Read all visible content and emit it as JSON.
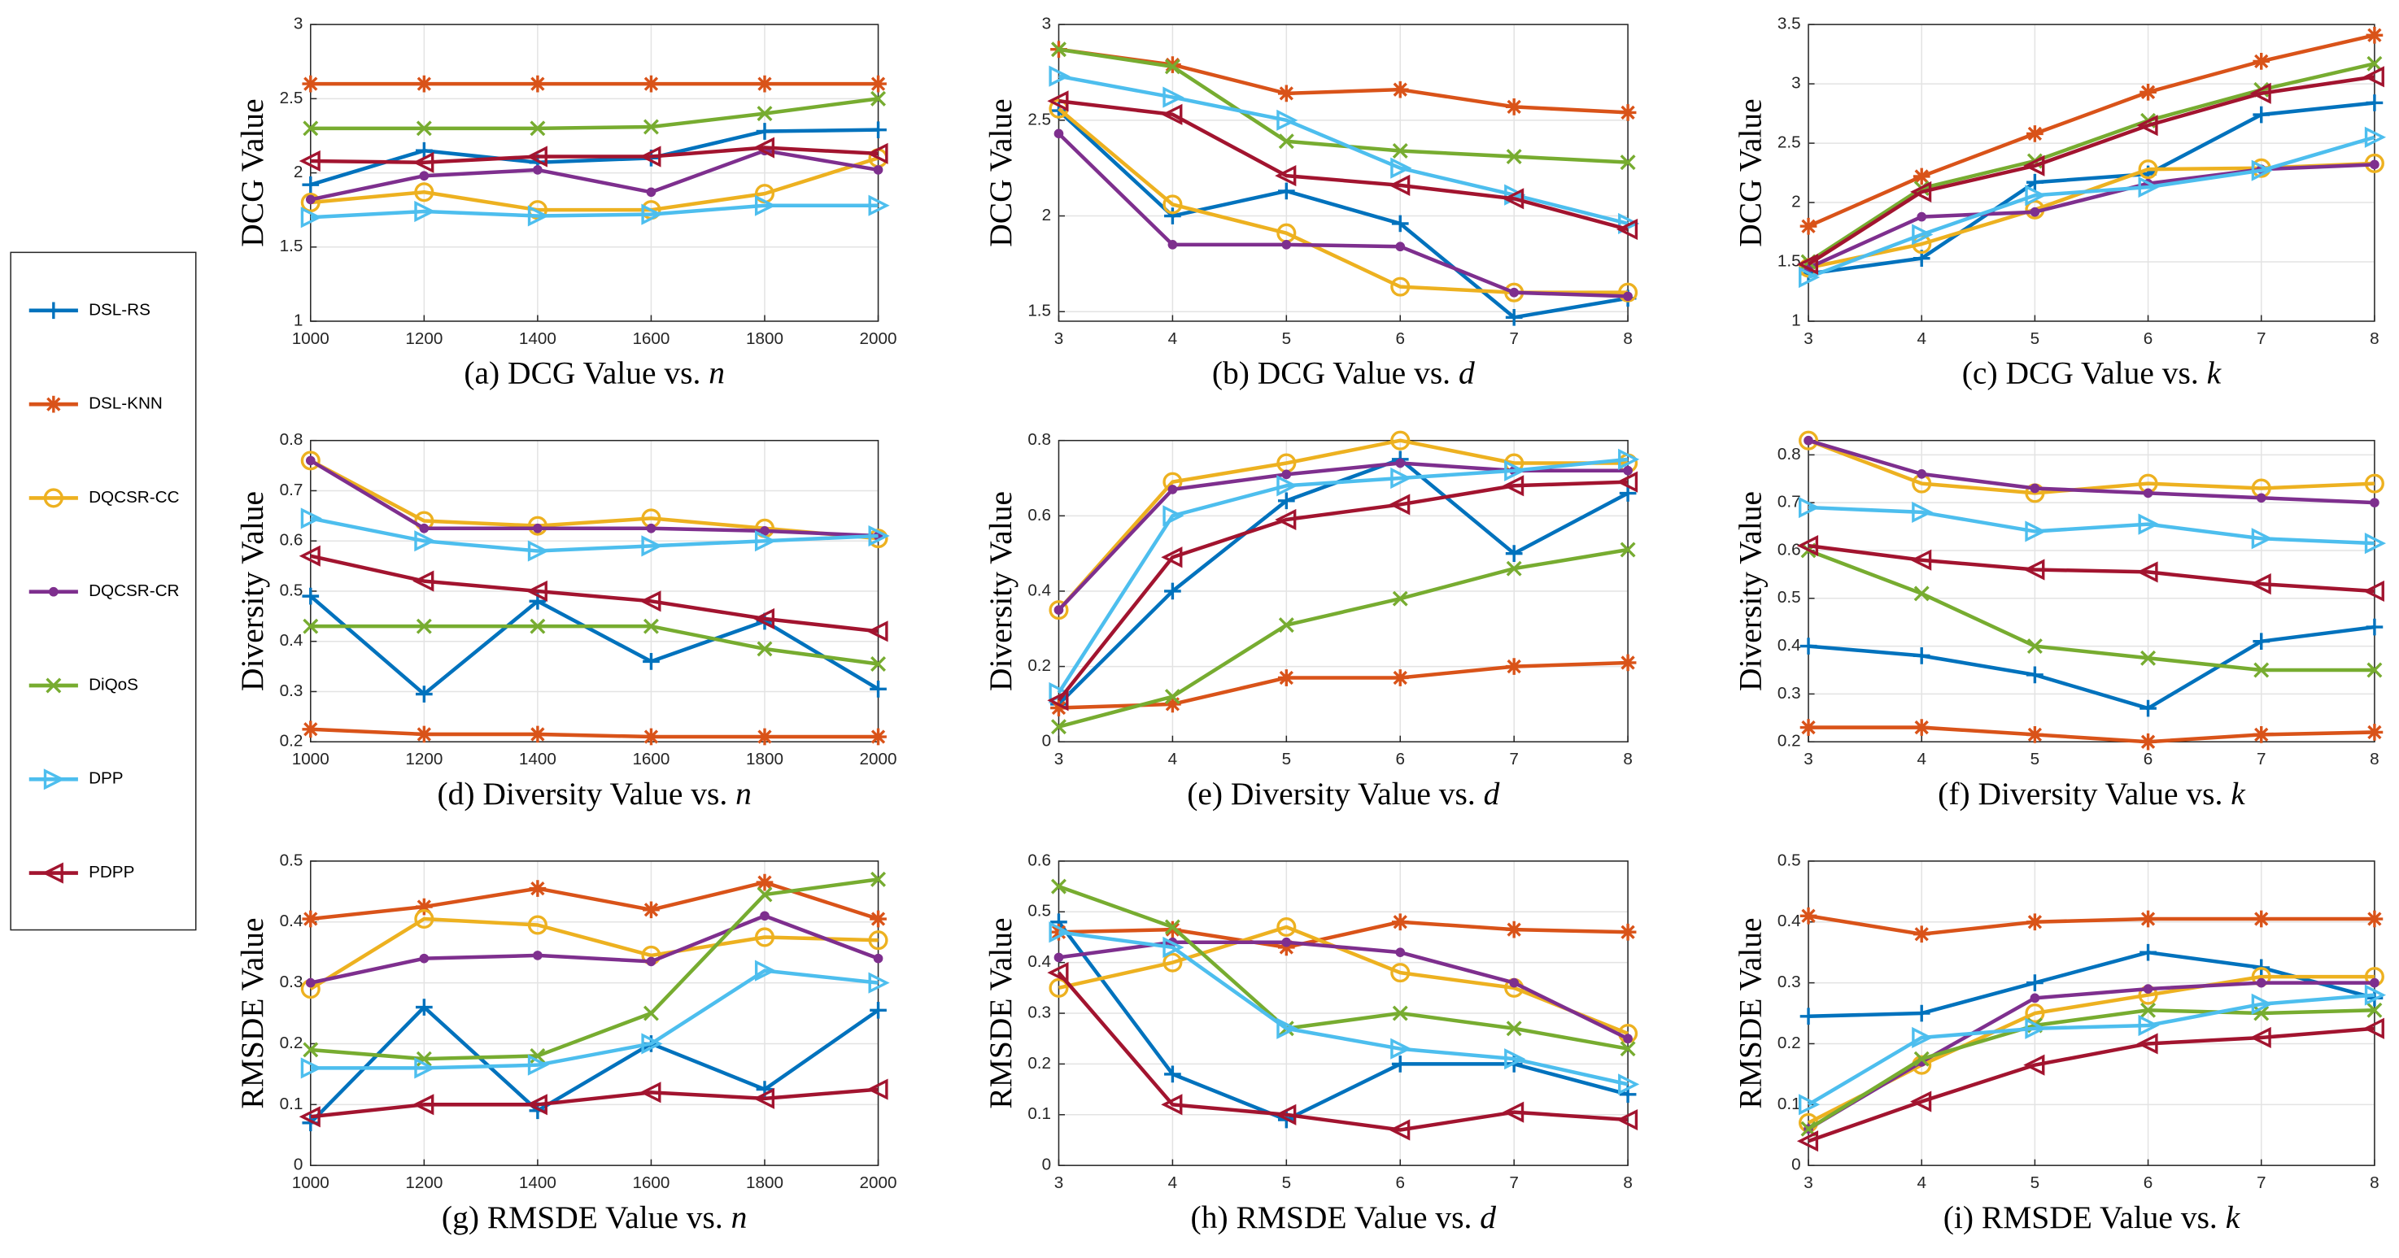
{
  "legend": {
    "entries": [
      {
        "name": "DSL-RS",
        "color": "#0072BD",
        "marker": "plus"
      },
      {
        "name": "DSL-KNN",
        "color": "#D95319",
        "marker": "asterisk"
      },
      {
        "name": "DQCSR-CC",
        "color": "#EDB120",
        "marker": "circle"
      },
      {
        "name": "DQCSR-CR",
        "color": "#7E2F8E",
        "marker": "point"
      },
      {
        "name": "DiQoS",
        "color": "#77AC30",
        "marker": "x"
      },
      {
        "name": "DPP",
        "color": "#4DBEEE",
        "marker": "triangle-right"
      },
      {
        "name": "PDPP",
        "color": "#A2142F",
        "marker": "triangle-left"
      }
    ],
    "position": "left"
  },
  "chart_data": [
    {
      "type": "line",
      "ylabel": "DCG Value",
      "caption": "(a) DCG Value vs.",
      "caption_var": "n",
      "x": [
        1000,
        1200,
        1400,
        1600,
        1800,
        2000
      ],
      "xlim": [
        1000,
        2000
      ],
      "xticks": [
        1000,
        1200,
        1400,
        1600,
        1800,
        2000
      ],
      "ylim": [
        1,
        3
      ],
      "yticks": [
        1,
        1.5,
        2,
        2.5,
        3
      ],
      "grid": true,
      "series": [
        {
          "values": [
            1.92,
            2.15,
            2.07,
            2.1,
            2.28,
            2.29
          ]
        },
        {
          "values": [
            2.6,
            2.6,
            2.6,
            2.6,
            2.6,
            2.6
          ]
        },
        {
          "values": [
            1.8,
            1.87,
            1.75,
            1.75,
            1.86,
            2.1
          ]
        },
        {
          "values": [
            1.82,
            1.98,
            2.02,
            1.87,
            2.15,
            2.02
          ]
        },
        {
          "values": [
            2.3,
            2.3,
            2.3,
            2.31,
            2.4,
            2.5
          ]
        },
        {
          "values": [
            1.7,
            1.74,
            1.71,
            1.72,
            1.78,
            1.78
          ]
        },
        {
          "values": [
            2.08,
            2.07,
            2.11,
            2.11,
            2.17,
            2.13
          ]
        }
      ]
    },
    {
      "type": "line",
      "ylabel": "DCG Value",
      "caption": "(b) DCG Value vs.",
      "caption_var": "d",
      "x": [
        3,
        4,
        5,
        6,
        7,
        8
      ],
      "xlim": [
        3,
        8
      ],
      "xticks": [
        3,
        4,
        5,
        6,
        7,
        8
      ],
      "ylim": [
        1.45,
        3
      ],
      "yticks": [
        1.5,
        2,
        2.5,
        3
      ],
      "grid": true,
      "series": [
        {
          "values": [
            2.55,
            2.0,
            2.13,
            1.96,
            1.47,
            1.57
          ]
        },
        {
          "values": [
            2.87,
            2.79,
            2.64,
            2.66,
            2.57,
            2.54
          ]
        },
        {
          "values": [
            2.56,
            2.06,
            1.91,
            1.63,
            1.6,
            1.6
          ]
        },
        {
          "values": [
            2.43,
            1.85,
            1.85,
            1.84,
            1.6,
            1.58
          ]
        },
        {
          "values": [
            2.87,
            2.78,
            2.39,
            2.34,
            2.31,
            2.28
          ]
        },
        {
          "values": [
            2.73,
            2.62,
            2.5,
            2.25,
            2.11,
            1.96
          ]
        },
        {
          "values": [
            2.6,
            2.53,
            2.21,
            2.16,
            2.09,
            1.93
          ]
        }
      ]
    },
    {
      "type": "line",
      "ylabel": "DCG Value",
      "caption": "(c) DCG Value vs.",
      "caption_var": "k",
      "x": [
        3,
        4,
        5,
        6,
        7,
        8
      ],
      "xlim": [
        3,
        8
      ],
      "xticks": [
        3,
        4,
        5,
        6,
        7,
        8
      ],
      "ylim": [
        1,
        3.5
      ],
      "yticks": [
        1,
        1.5,
        2,
        2.5,
        3,
        3.5
      ],
      "grid": true,
      "series": [
        {
          "values": [
            1.4,
            1.53,
            2.17,
            2.24,
            2.74,
            2.84
          ]
        },
        {
          "values": [
            1.8,
            2.22,
            2.58,
            2.93,
            3.19,
            3.41
          ]
        },
        {
          "values": [
            1.45,
            1.65,
            1.94,
            2.28,
            2.29,
            2.33
          ]
        },
        {
          "values": [
            1.45,
            1.88,
            1.92,
            2.16,
            2.28,
            2.32
          ]
        },
        {
          "values": [
            1.5,
            2.12,
            2.35,
            2.69,
            2.95,
            3.17
          ]
        },
        {
          "values": [
            1.37,
            1.73,
            2.06,
            2.13,
            2.27,
            2.55
          ]
        },
        {
          "values": [
            1.48,
            2.09,
            2.31,
            2.65,
            2.92,
            3.06
          ]
        }
      ]
    },
    {
      "type": "line",
      "ylabel": "Diversity Value",
      "caption": "(d) Diversity Value vs.",
      "caption_var": "n",
      "x": [
        1000,
        1200,
        1400,
        1600,
        1800,
        2000
      ],
      "xlim": [
        1000,
        2000
      ],
      "xticks": [
        1000,
        1200,
        1400,
        1600,
        1800,
        2000
      ],
      "ylim": [
        0.2,
        0.8
      ],
      "yticks": [
        0.2,
        0.3,
        0.4,
        0.5,
        0.6,
        0.7,
        0.8
      ],
      "grid": true,
      "series": [
        {
          "values": [
            0.49,
            0.295,
            0.48,
            0.36,
            0.44,
            0.305
          ]
        },
        {
          "values": [
            0.225,
            0.215,
            0.215,
            0.21,
            0.21,
            0.21
          ]
        },
        {
          "values": [
            0.76,
            0.64,
            0.63,
            0.645,
            0.625,
            0.605
          ]
        },
        {
          "values": [
            0.76,
            0.625,
            0.625,
            0.625,
            0.62,
            0.61
          ]
        },
        {
          "values": [
            0.43,
            0.43,
            0.43,
            0.43,
            0.385,
            0.355
          ]
        },
        {
          "values": [
            0.645,
            0.6,
            0.58,
            0.59,
            0.6,
            0.61
          ]
        },
        {
          "values": [
            0.57,
            0.52,
            0.5,
            0.48,
            0.445,
            0.42
          ]
        }
      ]
    },
    {
      "type": "line",
      "ylabel": "Diversity Value",
      "caption": "(e) Diversity Value vs.",
      "caption_var": "d",
      "x": [
        3,
        4,
        5,
        6,
        7,
        8
      ],
      "xlim": [
        3,
        8
      ],
      "xticks": [
        3,
        4,
        5,
        6,
        7,
        8
      ],
      "ylim": [
        0,
        0.8
      ],
      "yticks": [
        0,
        0.2,
        0.4,
        0.6,
        0.8
      ],
      "grid": true,
      "series": [
        {
          "values": [
            0.1,
            0.4,
            0.64,
            0.75,
            0.5,
            0.66
          ]
        },
        {
          "values": [
            0.09,
            0.1,
            0.17,
            0.17,
            0.2,
            0.21
          ]
        },
        {
          "values": [
            0.35,
            0.69,
            0.74,
            0.8,
            0.74,
            0.74
          ]
        },
        {
          "values": [
            0.35,
            0.67,
            0.71,
            0.74,
            0.72,
            0.72
          ]
        },
        {
          "values": [
            0.04,
            0.12,
            0.31,
            0.38,
            0.46,
            0.51
          ]
        },
        {
          "values": [
            0.13,
            0.6,
            0.68,
            0.7,
            0.72,
            0.75
          ]
        },
        {
          "values": [
            0.11,
            0.49,
            0.59,
            0.63,
            0.68,
            0.69
          ]
        }
      ]
    },
    {
      "type": "line",
      "ylabel": "Diversity Value",
      "caption": "(f) Diversity Value vs.",
      "caption_var": "k",
      "x": [
        3,
        4,
        5,
        6,
        7,
        8
      ],
      "xlim": [
        3,
        8
      ],
      "xticks": [
        3,
        4,
        5,
        6,
        7,
        8
      ],
      "ylim": [
        0.2,
        0.83
      ],
      "yticks": [
        0.2,
        0.3,
        0.4,
        0.5,
        0.6,
        0.7,
        0.8
      ],
      "grid": true,
      "series": [
        {
          "values": [
            0.4,
            0.38,
            0.34,
            0.27,
            0.41,
            0.44
          ]
        },
        {
          "values": [
            0.23,
            0.23,
            0.215,
            0.2,
            0.215,
            0.22
          ]
        },
        {
          "values": [
            0.83,
            0.74,
            0.72,
            0.74,
            0.73,
            0.74
          ]
        },
        {
          "values": [
            0.83,
            0.76,
            0.73,
            0.72,
            0.71,
            0.7
          ]
        },
        {
          "values": [
            0.6,
            0.51,
            0.4,
            0.375,
            0.35,
            0.35
          ]
        },
        {
          "values": [
            0.69,
            0.68,
            0.64,
            0.655,
            0.625,
            0.615
          ]
        },
        {
          "values": [
            0.61,
            0.58,
            0.56,
            0.555,
            0.53,
            0.515
          ]
        }
      ]
    },
    {
      "type": "line",
      "ylabel": "RMSDE Value",
      "caption": "(g) RMSDE Value vs.",
      "caption_var": "n",
      "x": [
        1000,
        1200,
        1400,
        1600,
        1800,
        2000
      ],
      "xlim": [
        1000,
        2000
      ],
      "xticks": [
        1000,
        1200,
        1400,
        1600,
        1800,
        2000
      ],
      "ylim": [
        0,
        0.5
      ],
      "yticks": [
        0,
        0.1,
        0.2,
        0.3,
        0.4,
        0.5
      ],
      "grid": true,
      "series": [
        {
          "values": [
            0.07,
            0.26,
            0.09,
            0.2,
            0.125,
            0.255
          ]
        },
        {
          "values": [
            0.405,
            0.425,
            0.455,
            0.42,
            0.465,
            0.405
          ]
        },
        {
          "values": [
            0.29,
            0.405,
            0.395,
            0.345,
            0.375,
            0.37
          ]
        },
        {
          "values": [
            0.3,
            0.34,
            0.345,
            0.335,
            0.41,
            0.34
          ]
        },
        {
          "values": [
            0.19,
            0.175,
            0.18,
            0.25,
            0.445,
            0.47
          ]
        },
        {
          "values": [
            0.16,
            0.16,
            0.165,
            0.2,
            0.32,
            0.3
          ]
        },
        {
          "values": [
            0.08,
            0.1,
            0.1,
            0.12,
            0.11,
            0.125
          ]
        }
      ]
    },
    {
      "type": "line",
      "ylabel": "RMSDE Value",
      "caption": "(h) RMSDE Value vs.",
      "caption_var": "d",
      "x": [
        3,
        4,
        5,
        6,
        7,
        8
      ],
      "xlim": [
        3,
        8
      ],
      "xticks": [
        3,
        4,
        5,
        6,
        7,
        8
      ],
      "ylim": [
        0,
        0.6
      ],
      "yticks": [
        0,
        0.1,
        0.2,
        0.3,
        0.4,
        0.5,
        0.6
      ],
      "grid": true,
      "series": [
        {
          "values": [
            0.48,
            0.18,
            0.09,
            0.2,
            0.2,
            0.14
          ]
        },
        {
          "values": [
            0.46,
            0.465,
            0.43,
            0.48,
            0.465,
            0.46
          ]
        },
        {
          "values": [
            0.35,
            0.4,
            0.47,
            0.38,
            0.35,
            0.26
          ]
        },
        {
          "values": [
            0.41,
            0.44,
            0.44,
            0.42,
            0.36,
            0.25
          ]
        },
        {
          "values": [
            0.55,
            0.47,
            0.27,
            0.3,
            0.27,
            0.23
          ]
        },
        {
          "values": [
            0.46,
            0.43,
            0.27,
            0.23,
            0.21,
            0.16
          ]
        },
        {
          "values": [
            0.38,
            0.12,
            0.1,
            0.07,
            0.105,
            0.09
          ]
        }
      ]
    },
    {
      "type": "line",
      "ylabel": "RMSDE Value",
      "caption": "(i) RMSDE Value vs.",
      "caption_var": "k",
      "x": [
        3,
        4,
        5,
        6,
        7,
        8
      ],
      "xlim": [
        3,
        8
      ],
      "xticks": [
        3,
        4,
        5,
        6,
        7,
        8
      ],
      "ylim": [
        0,
        0.5
      ],
      "yticks": [
        0,
        0.1,
        0.2,
        0.3,
        0.4,
        0.5
      ],
      "grid": true,
      "series": [
        {
          "values": [
            0.245,
            0.25,
            0.3,
            0.35,
            0.325,
            0.275
          ]
        },
        {
          "values": [
            0.41,
            0.38,
            0.4,
            0.405,
            0.405,
            0.405
          ]
        },
        {
          "values": [
            0.07,
            0.165,
            0.25,
            0.28,
            0.31,
            0.31
          ]
        },
        {
          "values": [
            0.06,
            0.17,
            0.275,
            0.29,
            0.3,
            0.3
          ]
        },
        {
          "values": [
            0.06,
            0.175,
            0.23,
            0.255,
            0.25,
            0.255
          ]
        },
        {
          "values": [
            0.1,
            0.21,
            0.225,
            0.23,
            0.265,
            0.28
          ]
        },
        {
          "values": [
            0.04,
            0.105,
            0.165,
            0.2,
            0.21,
            0.225
          ]
        }
      ]
    }
  ]
}
